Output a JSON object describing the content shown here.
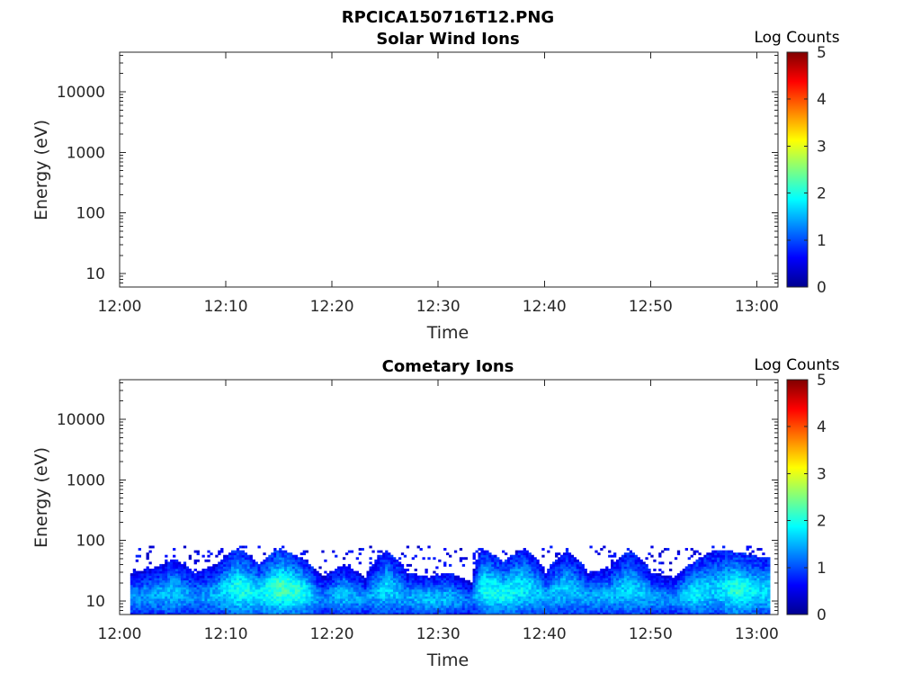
{
  "figure_title": "RPCICA150716T12.PNG",
  "chart_data": [
    {
      "type": "heatmap",
      "title": "Solar Wind Ions",
      "xlabel": "Time",
      "ylabel": "Energy (eV)",
      "x_ticks": [
        "12:00",
        "12:10",
        "12:20",
        "12:30",
        "12:40",
        "12:50",
        "13:00"
      ],
      "y_ticks": [
        10,
        100,
        1000,
        10000
      ],
      "y_tick_labels": [
        "10",
        "100",
        "1000",
        "10000"
      ],
      "y_scale": "log",
      "ylim": [
        6,
        45000
      ],
      "xlim": [
        "12:00",
        "13:02"
      ],
      "colorbar": {
        "label": "Log Counts",
        "range": [
          0,
          5
        ],
        "ticks": [
          "0",
          "1",
          "2",
          "3",
          "4",
          "5"
        ],
        "colormap": "jet"
      },
      "signal": []
    },
    {
      "type": "heatmap",
      "title": "Cometary Ions",
      "xlabel": "Time",
      "ylabel": "Energy (eV)",
      "x_ticks": [
        "12:00",
        "12:10",
        "12:20",
        "12:30",
        "12:40",
        "12:50",
        "13:00"
      ],
      "y_ticks": [
        10,
        100,
        1000,
        10000
      ],
      "y_tick_labels": [
        "10",
        "100",
        "1000",
        "10000"
      ],
      "y_scale": "log",
      "ylim": [
        6,
        45000
      ],
      "xlim": [
        "12:00",
        "13:02"
      ],
      "colorbar": {
        "label": "Log Counts",
        "range": [
          0,
          5
        ],
        "ticks": [
          "0",
          "1",
          "2",
          "3",
          "4",
          "5"
        ],
        "colormap": "jet"
      },
      "signal_time_range": [
        "12:01",
        "13:01"
      ],
      "signal_energy_range_eV": [
        6,
        80
      ],
      "signal": [
        {
          "t": "12:01",
          "e_top": 30,
          "log_counts": 1.3
        },
        {
          "t": "12:03",
          "e_top": 35,
          "log_counts": 1.4
        },
        {
          "t": "12:05",
          "e_top": 50,
          "log_counts": 1.6
        },
        {
          "t": "12:07",
          "e_top": 30,
          "log_counts": 1.3
        },
        {
          "t": "12:09",
          "e_top": 40,
          "log_counts": 1.5
        },
        {
          "t": "12:11",
          "e_top": 75,
          "log_counts": 2.0
        },
        {
          "t": "12:13",
          "e_top": 40,
          "log_counts": 1.8
        },
        {
          "t": "12:15",
          "e_top": 75,
          "log_counts": 2.2
        },
        {
          "t": "12:17",
          "e_top": 50,
          "log_counts": 2.0
        },
        {
          "t": "12:19",
          "e_top": 25,
          "log_counts": 1.2
        },
        {
          "t": "12:21",
          "e_top": 40,
          "log_counts": 1.6
        },
        {
          "t": "12:23",
          "e_top": 25,
          "log_counts": 1.3
        },
        {
          "t": "12:25",
          "e_top": 70,
          "log_counts": 1.7
        },
        {
          "t": "12:27",
          "e_top": 30,
          "log_counts": 1.4
        },
        {
          "t": "12:29",
          "e_top": 25,
          "log_counts": 1.6
        },
        {
          "t": "12:31",
          "e_top": 30,
          "log_counts": 1.5
        },
        {
          "t": "12:33",
          "e_top": 20,
          "log_counts": 1.1
        },
        {
          "t": "12:34",
          "e_top": 75,
          "log_counts": 1.9
        },
        {
          "t": "12:36",
          "e_top": 45,
          "log_counts": 1.9
        },
        {
          "t": "12:38",
          "e_top": 75,
          "log_counts": 1.8
        },
        {
          "t": "12:40",
          "e_top": 30,
          "log_counts": 1.5
        },
        {
          "t": "12:42",
          "e_top": 70,
          "log_counts": 1.6
        },
        {
          "t": "12:44",
          "e_top": 30,
          "log_counts": 1.4
        },
        {
          "t": "12:46",
          "e_top": 35,
          "log_counts": 1.5
        },
        {
          "t": "12:48",
          "e_top": 70,
          "log_counts": 1.7
        },
        {
          "t": "12:50",
          "e_top": 30,
          "log_counts": 1.4
        },
        {
          "t": "12:52",
          "e_top": 25,
          "log_counts": 1.3
        },
        {
          "t": "12:54",
          "e_top": 45,
          "log_counts": 1.8
        },
        {
          "t": "12:56",
          "e_top": 70,
          "log_counts": 1.6
        },
        {
          "t": "12:58",
          "e_top": 65,
          "log_counts": 2.1
        },
        {
          "t": "13:00",
          "e_top": 55,
          "log_counts": 1.7
        }
      ]
    }
  ]
}
